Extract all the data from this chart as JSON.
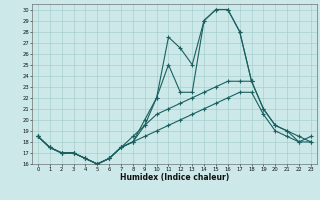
{
  "xlabel": "Humidex (Indice chaleur)",
  "background_color": "#cce8e8",
  "grid_color": "#a0c8c8",
  "line_color": "#1a6060",
  "xlim": [
    -0.5,
    23.5
  ],
  "ylim": [
    16,
    30.5
  ],
  "xticks": [
    0,
    1,
    2,
    3,
    4,
    5,
    6,
    7,
    8,
    9,
    10,
    11,
    12,
    13,
    14,
    15,
    16,
    17,
    18,
    19,
    20,
    21,
    22,
    23
  ],
  "yticks": [
    16,
    17,
    18,
    19,
    20,
    21,
    22,
    23,
    24,
    25,
    26,
    27,
    28,
    29,
    30
  ],
  "line1_x": [
    0,
    1,
    2,
    3,
    4,
    5,
    6,
    7,
    8,
    9,
    10,
    11,
    12,
    13,
    14,
    15,
    16,
    17,
    18,
    19,
    20,
    21,
    22,
    23
  ],
  "line1_y": [
    18.5,
    17.5,
    17.0,
    17.0,
    16.5,
    16.0,
    16.5,
    17.5,
    18.0,
    20.0,
    22.0,
    27.5,
    26.5,
    25.0,
    29.0,
    30.0,
    30.0,
    28.0,
    23.5,
    21.0,
    19.5,
    19.0,
    18.0,
    18.5
  ],
  "line2_x": [
    0,
    1,
    2,
    3,
    4,
    5,
    6,
    7,
    8,
    9,
    10,
    11,
    12,
    13,
    14,
    15,
    16,
    17,
    18
  ],
  "line2_y": [
    18.5,
    17.5,
    17.0,
    17.0,
    16.5,
    16.0,
    16.5,
    17.5,
    18.0,
    19.5,
    22.0,
    25.0,
    22.5,
    22.5,
    29.0,
    30.0,
    30.0,
    28.0,
    23.5
  ],
  "line3_x": [
    0,
    1,
    2,
    3,
    4,
    5,
    6,
    7,
    8,
    9,
    10,
    11,
    12,
    13,
    14,
    15,
    16,
    17,
    18,
    19,
    20,
    21,
    22,
    23
  ],
  "line3_y": [
    18.5,
    17.5,
    17.0,
    17.0,
    16.5,
    16.0,
    16.5,
    17.5,
    18.5,
    19.5,
    20.5,
    21.0,
    21.5,
    22.0,
    22.5,
    23.0,
    23.5,
    23.5,
    23.5,
    21.0,
    19.5,
    19.0,
    18.5,
    18.0
  ],
  "line4_x": [
    0,
    1,
    2,
    3,
    4,
    5,
    6,
    7,
    8,
    9,
    10,
    11,
    12,
    13,
    14,
    15,
    16,
    17,
    18,
    19,
    20,
    21,
    22,
    23
  ],
  "line4_y": [
    18.5,
    17.5,
    17.0,
    17.0,
    16.5,
    16.0,
    16.5,
    17.5,
    18.0,
    18.5,
    19.0,
    19.5,
    20.0,
    20.5,
    21.0,
    21.5,
    22.0,
    22.5,
    22.5,
    20.5,
    19.0,
    18.5,
    18.0,
    18.0
  ]
}
